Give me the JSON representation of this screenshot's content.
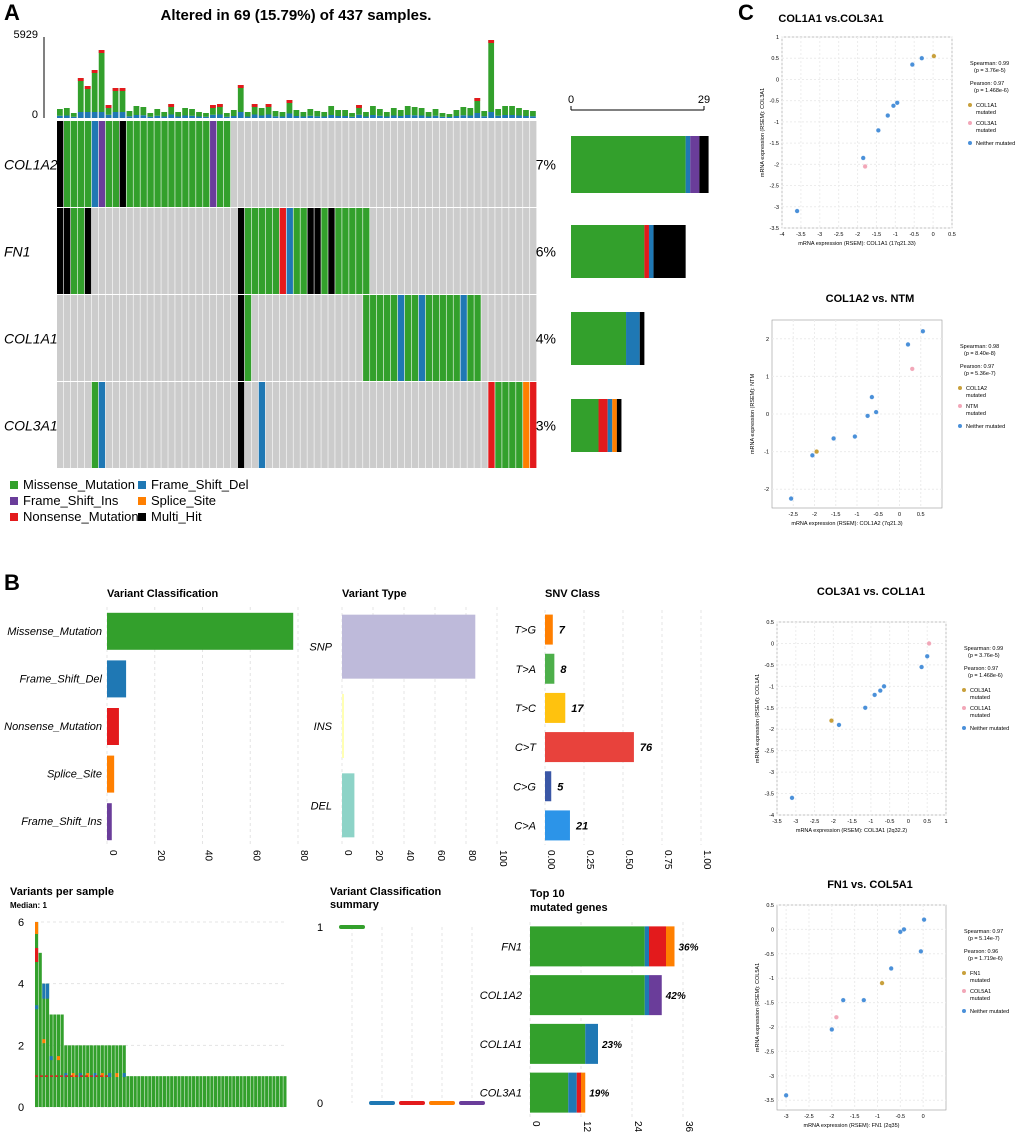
{
  "colors": {
    "missense": "#33a02c",
    "frame_shift_del": "#1f78b4",
    "frame_shift_ins": "#6a3d9a",
    "nonsense": "#e31a1c",
    "splice_site": "#ff7f00",
    "multi_hit": "#000000",
    "empty_cell": "#cccccc",
    "snp": "#bebada",
    "ins": "#ffffb3",
    "del": "#8dd3c7",
    "point_neither": "#4a90d9",
    "point_gene1": "#c8a03c",
    "point_gene2": "#f2a7b8",
    "snv_tg": "#ff7f00",
    "snv_ta": "#4daf4a",
    "snv_tc": "#ffc20e",
    "snv_ct": "#e8423c",
    "snv_cg": "#3a57a6",
    "snv_ca": "#2c94e8"
  },
  "panel_a": {
    "letter": "A",
    "title": "Altered in 69 (15.79%) of 437 samples.",
    "tmb_max": "5929",
    "tmb_min": "0",
    "side_axis_min": "0",
    "side_axis_max": "29",
    "chart_data": {
      "type": "oncoplot",
      "genes": [
        {
          "name": "COL1A2",
          "pct": "7%",
          "counts": {
            "missense": 25,
            "frame_shift_ins": 2,
            "frame_shift_del": 1,
            "multi_hit": 2
          }
        },
        {
          "name": "FN1",
          "pct": "6%",
          "counts": {
            "missense": 16,
            "nonsense": 1,
            "frame_shift_del": 1,
            "multi_hit": 7
          }
        },
        {
          "name": "COL1A1",
          "pct": "4%",
          "counts": {
            "missense": 12,
            "frame_shift_del": 3,
            "multi_hit": 1
          }
        },
        {
          "name": "COL3A1",
          "pct": "3%",
          "counts": {
            "missense": 6,
            "nonsense": 2,
            "frame_shift_del": 1,
            "splice_site": 1,
            "multi_hit": 1
          }
        }
      ],
      "legend": [
        {
          "key": "missense",
          "label": "Missense_Mutation"
        },
        {
          "key": "frame_shift_ins",
          "label": "Frame_Shift_Ins"
        },
        {
          "key": "nonsense",
          "label": "Nonsense_Mutation"
        },
        {
          "key": "frame_shift_del",
          "label": "Frame_Shift_Del"
        },
        {
          "key": "splice_site",
          "label": "Splice_Site"
        },
        {
          "key": "multi_hit",
          "label": "Multi_Hit"
        }
      ]
    }
  },
  "panel_b": {
    "letter": "B",
    "variant_classification": {
      "title": "Variant Classification",
      "chart_data": {
        "type": "bar",
        "orientation": "horizontal",
        "categories": [
          "Missense_Mutation",
          "Frame_Shift_Del",
          "Nonsense_Mutation",
          "Splice_Site",
          "Frame_Shift_Ins"
        ],
        "values": [
          78,
          8,
          5,
          3,
          2
        ],
        "color_keys": [
          "missense",
          "frame_shift_del",
          "nonsense",
          "splice_site",
          "frame_shift_ins"
        ],
        "xlim": [
          0,
          80
        ],
        "ticks": [
          "0",
          "20",
          "40",
          "60",
          "80"
        ]
      }
    },
    "variant_type": {
      "title": "Variant Type",
      "chart_data": {
        "type": "bar",
        "orientation": "horizontal",
        "categories": [
          "SNP",
          "INS",
          "DEL"
        ],
        "values": [
          86,
          1,
          8
        ],
        "color_keys": [
          "snp",
          "ins",
          "del"
        ],
        "xlim": [
          0,
          100
        ],
        "ticks": [
          "0",
          "20",
          "40",
          "60",
          "80",
          "100"
        ]
      }
    },
    "snv_class": {
      "title": "SNV Class",
      "chart_data": {
        "type": "bar",
        "orientation": "horizontal",
        "categories": [
          "T>G",
          "T>A",
          "T>C",
          "C>T",
          "C>G",
          "C>A"
        ],
        "fractions": [
          0.05,
          0.06,
          0.13,
          0.57,
          0.04,
          0.16
        ],
        "labels": [
          "7",
          "8",
          "17",
          "76",
          "5",
          "21"
        ],
        "color_keys": [
          "snv_tg",
          "snv_ta",
          "snv_tc",
          "snv_ct",
          "snv_cg",
          "snv_ca"
        ],
        "xlim": [
          0,
          1
        ],
        "ticks": [
          "0.00",
          "0.25",
          "0.50",
          "0.75",
          "1.00"
        ]
      }
    },
    "variants_per_sample": {
      "title": "Variants per sample",
      "subtitle": "Median: 1",
      "chart_data": {
        "type": "bar",
        "ylim": [
          0,
          6
        ],
        "ticks": [
          "0",
          "2",
          "4",
          "6"
        ],
        "values": [
          6,
          5,
          4,
          4,
          3,
          3,
          3,
          3,
          2,
          2,
          2,
          2,
          2,
          2,
          2,
          2,
          2,
          2,
          2,
          2,
          2,
          2,
          2,
          2,
          2,
          1,
          1,
          1,
          1,
          1,
          1,
          1,
          1,
          1,
          1,
          1,
          1,
          1,
          1,
          1,
          1,
          1,
          1,
          1,
          1,
          1,
          1,
          1,
          1,
          1,
          1,
          1,
          1,
          1,
          1,
          1,
          1,
          1,
          1,
          1,
          1,
          1,
          1,
          1,
          1,
          1,
          1,
          1,
          1
        ]
      }
    },
    "vc_summary": {
      "title_line1": "Variant Classification",
      "title_line2": "summary",
      "chart_data": {
        "type": "boxplot",
        "ylim": [
          0,
          1
        ],
        "ticks": [
          "0",
          "1"
        ],
        "medians": [
          1,
          0,
          0,
          0,
          0
        ],
        "color_keys": [
          "missense",
          "frame_shift_del",
          "nonsense",
          "splice_site",
          "frame_shift_ins"
        ]
      }
    },
    "top10": {
      "title_line1": "Top 10",
      "title_line2": "mutated genes",
      "chart_data": {
        "type": "stacked_bar",
        "orientation": "horizontal",
        "categories": [
          "FN1",
          "COL1A2",
          "COL1A1",
          "COL3A1"
        ],
        "pct_labels": [
          "36%",
          "42%",
          "23%",
          "19%"
        ],
        "xlim": [
          0,
          36
        ],
        "ticks": [
          "0",
          "12",
          "24",
          "36"
        ],
        "series": [
          {
            "key": "missense",
            "values": [
              27,
              27,
              13,
              9
            ]
          },
          {
            "key": "frame_shift_del",
            "values": [
              1,
              1,
              3,
              2
            ]
          },
          {
            "key": "frame_shift_ins",
            "values": [
              0,
              3,
              0,
              0
            ]
          },
          {
            "key": "nonsense",
            "values": [
              4,
              0,
              0,
              1
            ]
          },
          {
            "key": "splice_site",
            "values": [
              2,
              0,
              0,
              1
            ]
          }
        ]
      }
    }
  },
  "panel_c": {
    "letter": "C",
    "plots": [
      {
        "title": "COL1A1 vs.COL3A1",
        "xlabel": "mRNA expression (RSEM): COL1A1 (17q21.33)",
        "ylabel": "mRNA expression (RSEM): COL3A1",
        "stats": [
          "Spearman: 0.99",
          "(p = 3.76e-5)",
          "Pearson: 0.97",
          "(p = 1.468e-6)"
        ],
        "legend": [
          "COL1A1",
          "mutated",
          "COL3A1",
          "mutated",
          "Neither mutated"
        ],
        "chart_data": {
          "type": "scatter",
          "xlim": [
            -4,
            0.5
          ],
          "ylim": [
            -3.5,
            1
          ],
          "xticks": [
            "-4",
            "-3.5",
            "-3",
            "-2.5",
            "-2",
            "-1.5",
            "-1",
            "-0.5",
            "0",
            "0.5"
          ],
          "yticks": [
            "-3.5",
            "-3",
            "-2.5",
            "-2",
            "-1.5",
            "-1",
            "-0.5",
            "0",
            "0.5",
            "1"
          ],
          "points": [
            {
              "x": -3.6,
              "y": -3.1,
              "g": "n"
            },
            {
              "x": -1.85,
              "y": -1.85,
              "g": "n"
            },
            {
              "x": -1.8,
              "y": -2.05,
              "g": "b"
            },
            {
              "x": -1.45,
              "y": -1.2,
              "g": "n"
            },
            {
              "x": -1.2,
              "y": -0.85,
              "g": "n"
            },
            {
              "x": -1.05,
              "y": -0.62,
              "g": "n"
            },
            {
              "x": -0.95,
              "y": -0.55,
              "g": "n"
            },
            {
              "x": -0.55,
              "y": 0.35,
              "g": "n"
            },
            {
              "x": -0.3,
              "y": 0.5,
              "g": "n"
            },
            {
              "x": 0.02,
              "y": 0.55,
              "g": "a"
            }
          ]
        }
      },
      {
        "title": "COL1A2 vs. NTM",
        "xlabel": "mRNA expression (RSEM): COL1A2 (7q21.3)",
        "ylabel": "mRNA expression (RSEM): NTM",
        "stats": [
          "Spearman: 0.98",
          "(p = 8.40e-8)",
          "Pearson: 0.97",
          "(p = 5.36e-7)"
        ],
        "legend": [
          "COL1A2",
          "mutated",
          "NTM",
          "mutated",
          "Neither mutated"
        ],
        "chart_data": {
          "type": "scatter",
          "xlim": [
            -3,
            1
          ],
          "ylim": [
            -2.5,
            2.5
          ],
          "xticks": [
            "-2.5",
            "-2",
            "-1.5",
            "-1",
            "-0.5",
            "0",
            "0.5"
          ],
          "yticks": [
            "-2",
            "-1",
            "0",
            "1",
            "2"
          ],
          "points": [
            {
              "x": -2.55,
              "y": -2.25,
              "g": "n"
            },
            {
              "x": -2.05,
              "y": -1.1,
              "g": "n"
            },
            {
              "x": -1.95,
              "y": -1.0,
              "g": "a"
            },
            {
              "x": -1.55,
              "y": -0.65,
              "g": "n"
            },
            {
              "x": -1.05,
              "y": -0.6,
              "g": "n"
            },
            {
              "x": -0.75,
              "y": -0.05,
              "g": "n"
            },
            {
              "x": -0.65,
              "y": 0.45,
              "g": "n"
            },
            {
              "x": -0.55,
              "y": 0.05,
              "g": "n"
            },
            {
              "x": 0.2,
              "y": 1.85,
              "g": "n"
            },
            {
              "x": 0.3,
              "y": 1.2,
              "g": "b"
            },
            {
              "x": 0.55,
              "y": 2.2,
              "g": "n"
            }
          ]
        }
      },
      {
        "title": "COL3A1 vs. COL1A1",
        "xlabel": "mRNA expression (RSEM): COL3A1 (2q32.2)",
        "ylabel": "mRNA expression (RSEM): COL1A1",
        "stats": [
          "Spearman: 0.99",
          "(p = 3.76e-5)",
          "Pearson: 0.97",
          "(p = 1.468e-6)"
        ],
        "legend": [
          "COL3A1",
          "mutated",
          "COL1A1",
          "mutated",
          "Neither mutated"
        ],
        "chart_data": {
          "type": "scatter",
          "xlim": [
            -3.5,
            1
          ],
          "ylim": [
            -4,
            0.5
          ],
          "xticks": [
            "-3.5",
            "-3",
            "-2.5",
            "-2",
            "-1.5",
            "-1",
            "-0.5",
            "0",
            "0.5",
            "1"
          ],
          "yticks": [
            "-4",
            "-3.5",
            "-3",
            "-2.5",
            "-2",
            "-1.5",
            "-1",
            "-0.5",
            "0",
            "0.5"
          ],
          "points": [
            {
              "x": -3.1,
              "y": -3.6,
              "g": "n"
            },
            {
              "x": -2.05,
              "y": -1.8,
              "g": "a"
            },
            {
              "x": -1.85,
              "y": -1.9,
              "g": "n"
            },
            {
              "x": -1.15,
              "y": -1.5,
              "g": "n"
            },
            {
              "x": -0.9,
              "y": -1.2,
              "g": "n"
            },
            {
              "x": -0.75,
              "y": -1.1,
              "g": "n"
            },
            {
              "x": -0.65,
              "y": -1.0,
              "g": "n"
            },
            {
              "x": 0.35,
              "y": -0.55,
              "g": "n"
            },
            {
              "x": 0.5,
              "y": -0.3,
              "g": "n"
            },
            {
              "x": 0.55,
              "y": 0.0,
              "g": "b"
            }
          ]
        }
      },
      {
        "title": "FN1 vs. COL5A1",
        "xlabel": "mRNA expression (RSEM): FN1 (2q35)",
        "ylabel": "mRNA expression (RSEM): COL5A1",
        "stats": [
          "Spearman: 0.97",
          "(p = 5.14e-7)",
          "Pearson: 0.96",
          "(p = 1.719e-6)"
        ],
        "legend": [
          "FN1",
          "mutated",
          "COL5A1",
          "mutated",
          "Neither mutated"
        ],
        "chart_data": {
          "type": "scatter",
          "xlim": [
            -3.2,
            0.5
          ],
          "ylim": [
            -3.7,
            0.5
          ],
          "xticks": [
            "-3",
            "-2.5",
            "-2",
            "-1.5",
            "-1",
            "-0.5",
            "0"
          ],
          "yticks": [
            "-3.5",
            "-3",
            "-2.5",
            "-2",
            "-1.5",
            "-1",
            "-0.5",
            "0",
            "0.5"
          ],
          "points": [
            {
              "x": -3.0,
              "y": -3.4,
              "g": "n"
            },
            {
              "x": -2.0,
              "y": -2.05,
              "g": "n"
            },
            {
              "x": -1.9,
              "y": -1.8,
              "g": "b"
            },
            {
              "x": -1.75,
              "y": -1.45,
              "g": "n"
            },
            {
              "x": -1.3,
              "y": -1.45,
              "g": "n"
            },
            {
              "x": -0.9,
              "y": -1.1,
              "g": "a"
            },
            {
              "x": -0.7,
              "y": -0.8,
              "g": "n"
            },
            {
              "x": -0.5,
              "y": -0.05,
              "g": "n"
            },
            {
              "x": -0.42,
              "y": 0.0,
              "g": "n"
            },
            {
              "x": -0.05,
              "y": -0.45,
              "g": "n"
            },
            {
              "x": 0.02,
              "y": 0.2,
              "g": "n"
            }
          ]
        }
      }
    ]
  }
}
